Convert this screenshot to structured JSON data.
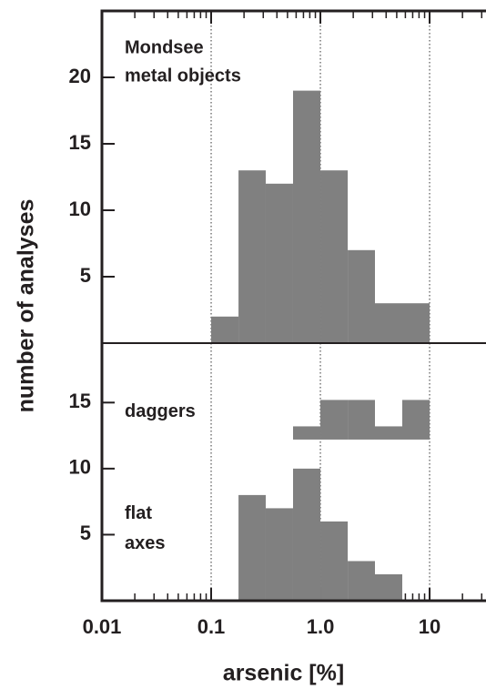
{
  "chart_data": [
    {
      "type": "histogram",
      "annotation": [
        "Mondsee",
        "metal objects"
      ],
      "ylabel": "number of analyses",
      "xscale": "log",
      "xlim": [
        0.01,
        31
      ],
      "xticks": [
        0.01,
        0.1,
        1,
        10
      ],
      "grid": true,
      "ylim": [
        0,
        25
      ],
      "yticks": [
        5,
        10,
        15,
        20
      ],
      "bins": [
        0.1,
        0.178,
        0.316,
        0.562,
        1,
        1.78,
        3.16,
        5.62,
        10
      ],
      "values": [
        2,
        13,
        12,
        19,
        13,
        7,
        3,
        3
      ],
      "color": "#808080"
    },
    {
      "type": "histogram",
      "xlabel": "arsenic [%]",
      "xscale": "log",
      "xlim": [
        0.01,
        31
      ],
      "xticks": [
        0.01,
        0.1,
        {
          "value": 1,
          "label": "1.0"
        },
        10
      ],
      "grid": true,
      "ylim": [
        0,
        19.5
      ],
      "yticks": [
        5,
        10,
        15
      ],
      "series": [
        {
          "name": "daggers",
          "color": "#808080",
          "base": 12.2,
          "bins": [
            0.562,
            1,
            1.78,
            3.16,
            5.62,
            10
          ],
          "values": [
            1,
            3,
            3,
            1,
            3
          ]
        },
        {
          "name": "flat axes",
          "color": "#808080",
          "bins": [
            0.178,
            0.316,
            0.562,
            1,
            1.78,
            3.16,
            5.62
          ],
          "values": [
            8,
            7,
            10,
            6,
            3,
            2
          ]
        }
      ]
    }
  ]
}
